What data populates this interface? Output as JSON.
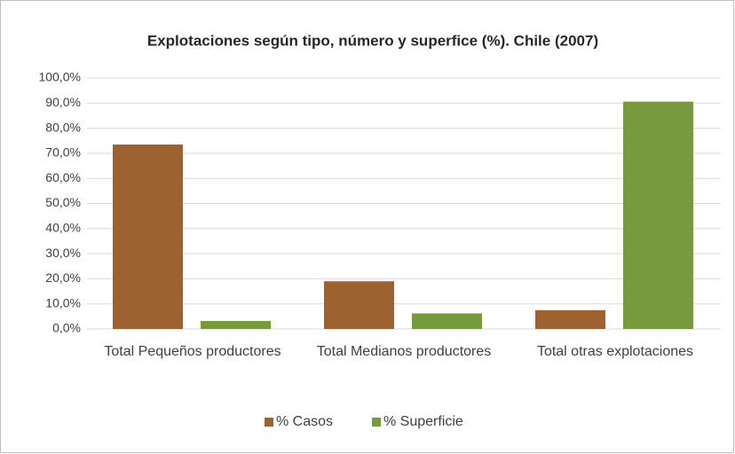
{
  "chart_data": {
    "type": "bar",
    "title": "Explotaciones según tipo, número y superfice (%). Chile (2007)",
    "categories": [
      "Total Pequeños productores",
      "Total Medianos productores",
      "Total otras explotaciones"
    ],
    "series": [
      {
        "name": "% Casos",
        "color": "#9e6231",
        "values": [
          73.5,
          19.0,
          7.5
        ]
      },
      {
        "name": "% Superficie",
        "color": "#779a3d",
        "values": [
          3.2,
          6.2,
          90.6
        ]
      }
    ],
    "ylim": [
      0,
      100
    ],
    "yticks": [
      {
        "value": 0,
        "label": "0,0%"
      },
      {
        "value": 10,
        "label": "10,0%"
      },
      {
        "value": 20,
        "label": "20,0%"
      },
      {
        "value": 30,
        "label": "30,0%"
      },
      {
        "value": 40,
        "label": "40,0%"
      },
      {
        "value": 50,
        "label": "50,0%"
      },
      {
        "value": 60,
        "label": "60,0%"
      },
      {
        "value": 70,
        "label": "70,0%"
      },
      {
        "value": 80,
        "label": "80,0%"
      },
      {
        "value": 90,
        "label": "90,0%"
      },
      {
        "value": 100,
        "label": "100,0%"
      }
    ],
    "grid": true,
    "legend": "bottom"
  }
}
